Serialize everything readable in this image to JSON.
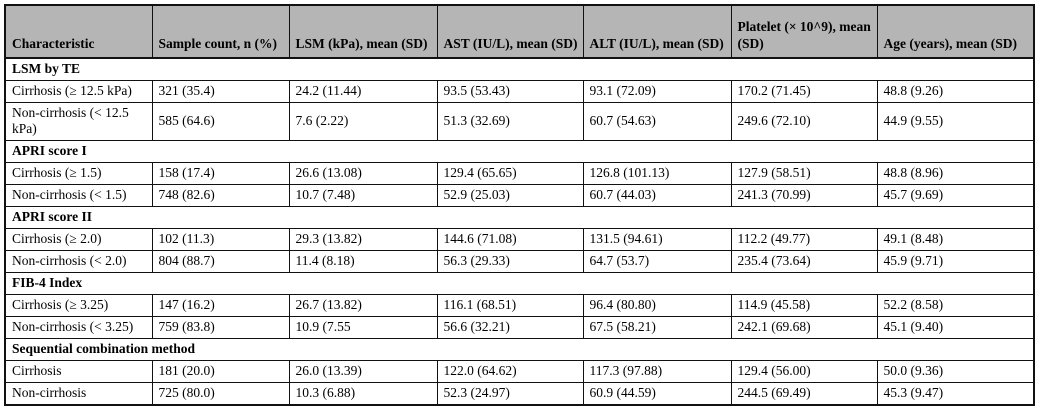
{
  "table": {
    "columns": [
      "Characteristic",
      "Sample count, n (%)",
      "LSM (kPa), mean (SD)",
      "AST (IU/L), mean (SD)",
      "ALT (IU/L), mean (SD)",
      "Platelet (× 10^9), mean (SD)",
      "Age (years), mean (SD)"
    ],
    "sections": [
      {
        "title": "LSM by TE",
        "rows": [
          [
            "Cirrhosis (≥ 12.5 kPa)",
            "321 (35.4)",
            "24.2 (11.44)",
            "93.5 (53.43)",
            "93.1 (72.09)",
            "170.2 (71.45)",
            "48.8 (9.26)"
          ],
          [
            "Non-cirrhosis (< 12.5 kPa)",
            "585 (64.6)",
            "7.6 (2.22)",
            "51.3 (32.69)",
            "60.7 (54.63)",
            "249.6 (72.10)",
            "44.9 (9.55)"
          ]
        ]
      },
      {
        "title": "APRI score I",
        "rows": [
          [
            "Cirrhosis (≥ 1.5)",
            "158 (17.4)",
            "26.6 (13.08)",
            "129.4 (65.65)",
            "126.8 (101.13)",
            "127.9 (58.51)",
            "48.8 (8.96)"
          ],
          [
            "Non-cirrhosis (< 1.5)",
            "748 (82.6)",
            "10.7 (7.48)",
            "52.9 (25.03)",
            "60.7 (44.03)",
            "241.3 (70.99)",
            "45.7 (9.69)"
          ]
        ]
      },
      {
        "title": "APRI score II",
        "rows": [
          [
            "Cirrhosis (≥ 2.0)",
            "102 (11.3)",
            "29.3 (13.82)",
            "144.6 (71.08)",
            "131.5 (94.61)",
            "112.2 (49.77)",
            "49.1 (8.48)"
          ],
          [
            "Non-cirrhosis (< 2.0)",
            "804 (88.7)",
            "11.4 (8.18)",
            "56.3 (29.33)",
            "64.7 (53.7)",
            "235.4 (73.64)",
            "45.9 (9.71)"
          ]
        ]
      },
      {
        "title": "FIB-4 Index",
        "rows": [
          [
            "Cirrhosis (≥ 3.25)",
            "147 (16.2)",
            "26.7 (13.82)",
            "116.1 (68.51)",
            "96.4 (80.80)",
            "114.9 (45.58)",
            "52.2 (8.58)"
          ],
          [
            "Non-cirrhosis (< 3.25)",
            "759 (83.8)",
            "10.9 (7.55",
            "56.6 (32.21)",
            "67.5 (58.21)",
            "242.1 (69.68)",
            "45.1 (9.40)"
          ]
        ]
      },
      {
        "title": "Sequential combination method",
        "rows": [
          [
            "Cirrhosis",
            "181 (20.0)",
            "26.0 (13.39)",
            "122.0 (64.62)",
            "117.3 (97.88)",
            "129.4 (56.00)",
            "50.0 (9.36)"
          ],
          [
            "Non-cirrhosis",
            "725 (80.0)",
            "10.3 (6.88)",
            "52.3 (24.97)",
            "60.9 (44.59)",
            "244.5 (69.49)",
            "45.3 (9.47)"
          ]
        ]
      }
    ],
    "colors": {
      "header_bg": "#b5b5b5",
      "border": "#111111",
      "text": "#000000",
      "row_bg": "#ffffff"
    }
  }
}
